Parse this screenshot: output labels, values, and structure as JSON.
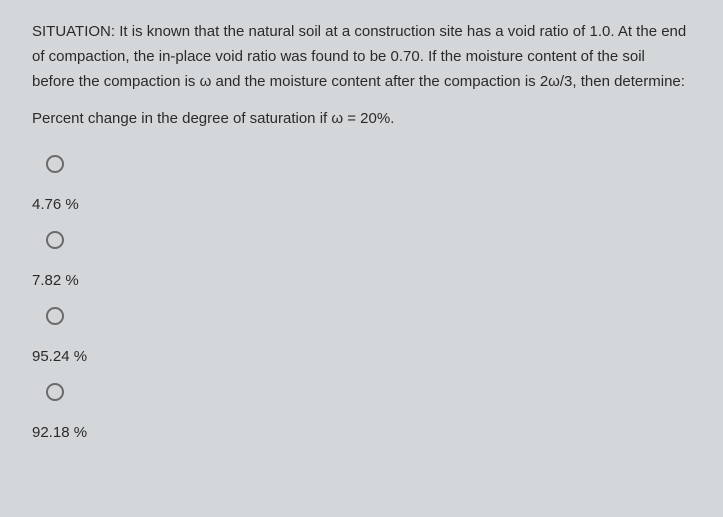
{
  "situation": {
    "label": "SITUATION:",
    "text": "It is known that the natural soil at a construction site has a void ratio of 1.0. At the end of compaction, the in-place void ratio was found to be 0.70. If the moisture content of the soil before the compaction is ω and the moisture content after the compaction is 2ω/3, then determine:"
  },
  "question": {
    "text": "Percent change in the degree of saturation if ω = 20%."
  },
  "options": [
    {
      "label": "4.76 %"
    },
    {
      "label": "7.82 %"
    },
    {
      "label": "95.24 %"
    },
    {
      "label": "92.18 %"
    }
  ],
  "colors": {
    "background": "#d4d7d9",
    "text": "#2a2a2a",
    "radio_border": "#6a6a6a"
  }
}
